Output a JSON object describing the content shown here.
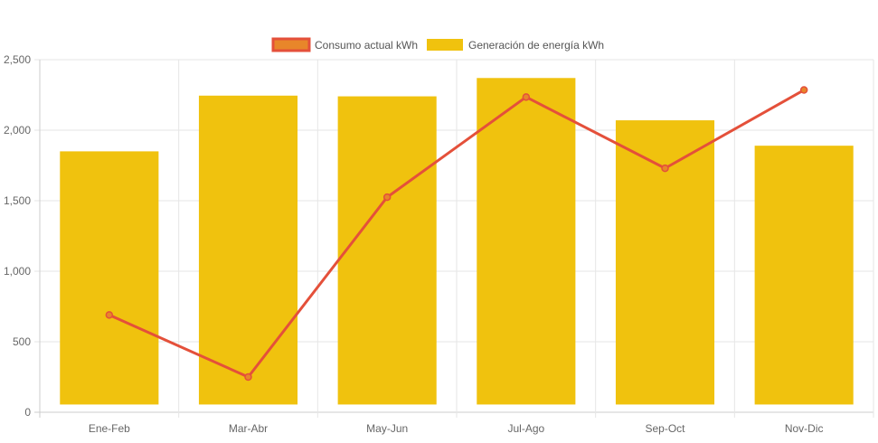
{
  "chart_data": {
    "type": "bar",
    "categories": [
      "Ene-Feb",
      "Mar-Abr",
      "May-Jun",
      "Jul-Ago",
      "Sep-Oct",
      "Nov-Dic"
    ],
    "ylim": [
      0,
      2500
    ],
    "yticks": [
      0,
      500,
      1000,
      1500,
      2000,
      2500
    ],
    "ytick_labels": [
      "0",
      "500",
      "1,000",
      "1,500",
      "2,000",
      "2,500"
    ],
    "grid": true,
    "legend_position": "top-center",
    "series": [
      {
        "name": "Consumo actual kWh",
        "type": "line",
        "color": "#e4503a",
        "marker_fill": "#e8862a",
        "values": [
          690,
          250,
          1525,
          2235,
          1730,
          2285
        ]
      },
      {
        "name": "Generación de energía kWh",
        "type": "bar",
        "color": "#f0c20e",
        "base": 55,
        "values": [
          1850,
          2245,
          2240,
          2370,
          2070,
          1890
        ]
      }
    ]
  }
}
